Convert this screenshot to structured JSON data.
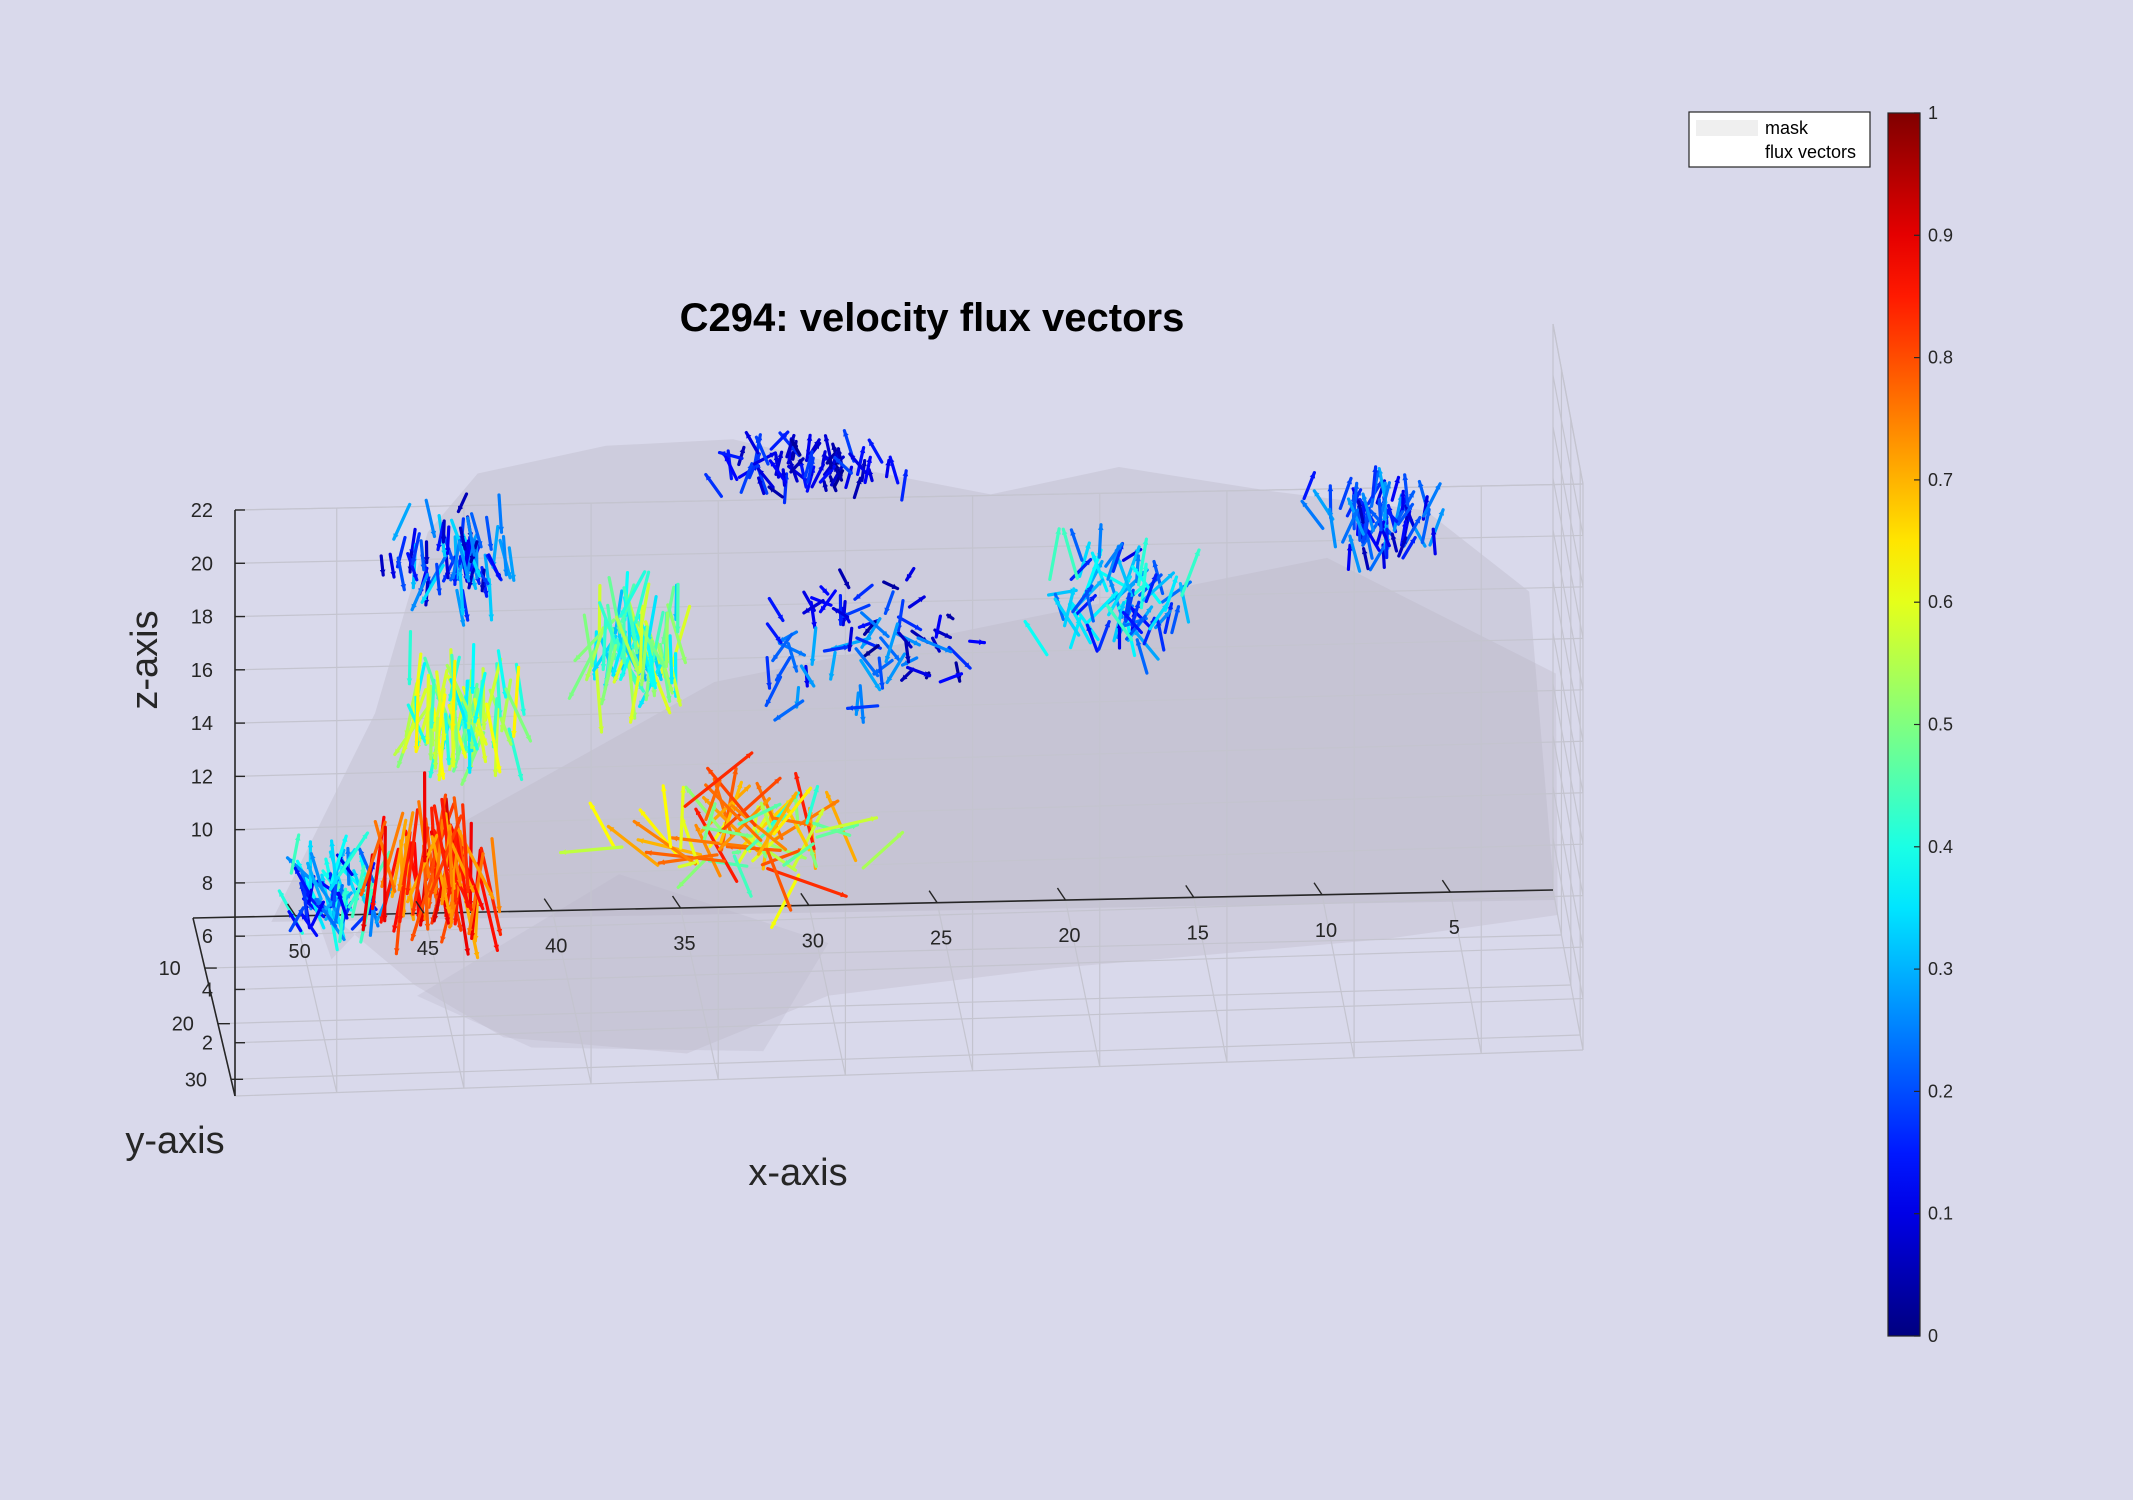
{
  "chart_data": {
    "type": "quiver3",
    "title": "C294: velocity flux vectors",
    "xlabel": "x-axis",
    "ylabel": "y-axis",
    "zlabel": "z-axis",
    "x_ticks": [
      50,
      45,
      40,
      35,
      30,
      25,
      20,
      15,
      10,
      5
    ],
    "y_ticks": [
      10,
      20,
      30
    ],
    "z_ticks": [
      2,
      4,
      6,
      8,
      10,
      12,
      14,
      16,
      18,
      20,
      22
    ],
    "xlim": [
      1,
      54
    ],
    "ylim": [
      1,
      33
    ],
    "zlim": [
      0,
      22
    ],
    "x_direction": "reversed",
    "grid": true,
    "legend": {
      "position": "top-right",
      "entries": [
        {
          "label": "mask",
          "swatch_color": "#efefef"
        },
        {
          "label": "flux vectors",
          "swatch_color": "#ffffff"
        }
      ]
    },
    "colorbar": {
      "colormap": "jet",
      "range": [
        0,
        1
      ],
      "tick_labels": [
        "0",
        "0.1",
        "0.2",
        "0.3",
        "0.4",
        "0.5",
        "0.6",
        "0.7",
        "0.8",
        "0.9",
        "1"
      ]
    },
    "series": [
      {
        "name": "mask",
        "kind": "isosurface",
        "color": "#b8b4c4",
        "opacity": 0.35,
        "extent": {
          "x": [
            1,
            51
          ],
          "y": [
            1,
            30
          ],
          "z": [
            0,
            18
          ]
        }
      },
      {
        "name": "flux vectors",
        "kind": "quiver3",
        "color_by": "normalized velocity magnitude",
        "clusters": [
          {
            "x": 44,
            "y": 6,
            "z": 15,
            "spread": [
              3.5,
              5,
              2.0
            ],
            "dz": -1.6,
            "mag": [
              0.05,
              0.35
            ]
          },
          {
            "x": 44,
            "y": 8,
            "z": 10,
            "spread": [
              3.5,
              5,
              2.5
            ],
            "dz": -1.8,
            "mag": [
              0.35,
              0.65
            ]
          },
          {
            "x": 45,
            "y": 10,
            "z": 5,
            "spread": [
              3.5,
              6,
              2.0
            ],
            "dz": -2.0,
            "mag": [
              0.7,
              0.92
            ]
          },
          {
            "x": 37,
            "y": 7,
            "z": 12,
            "spread": [
              3.0,
              5,
              2.5
            ],
            "dz": -1.2,
            "mag": [
              0.3,
              0.6
            ]
          },
          {
            "x": 28,
            "y": 5,
            "z": 11,
            "spread": [
              5.0,
              5,
              3.5
            ],
            "dz": -0.4,
            "mag": [
              0.02,
              0.3
            ]
          },
          {
            "x": 18,
            "y": 6,
            "z": 12,
            "spread": [
              4.0,
              5,
              3.0
            ],
            "dz": 0.6,
            "mag": [
              0.1,
              0.45
            ]
          },
          {
            "x": 8,
            "y": 6,
            "z": 15,
            "spread": [
              3.0,
              4,
              2.0
            ],
            "dz": 1.2,
            "mag": [
              0.05,
              0.3
            ]
          },
          {
            "x": 33,
            "y": 10,
            "z": 4,
            "spread": [
              6.0,
              5,
              1.5
            ],
            "dz": 0.3,
            "mag": [
              0.4,
              0.85
            ]
          },
          {
            "x": 49,
            "y": 14,
            "z": 3,
            "spread": [
              2.5,
              5,
              2.0
            ],
            "dz": 0.9,
            "mag": [
              0.1,
              0.45
            ]
          },
          {
            "x": 30,
            "y": 4,
            "z": 17,
            "spread": [
              5.0,
              3,
              1.5
            ],
            "dz": 0.8,
            "mag": [
              0.02,
              0.2
            ]
          }
        ]
      }
    ]
  }
}
